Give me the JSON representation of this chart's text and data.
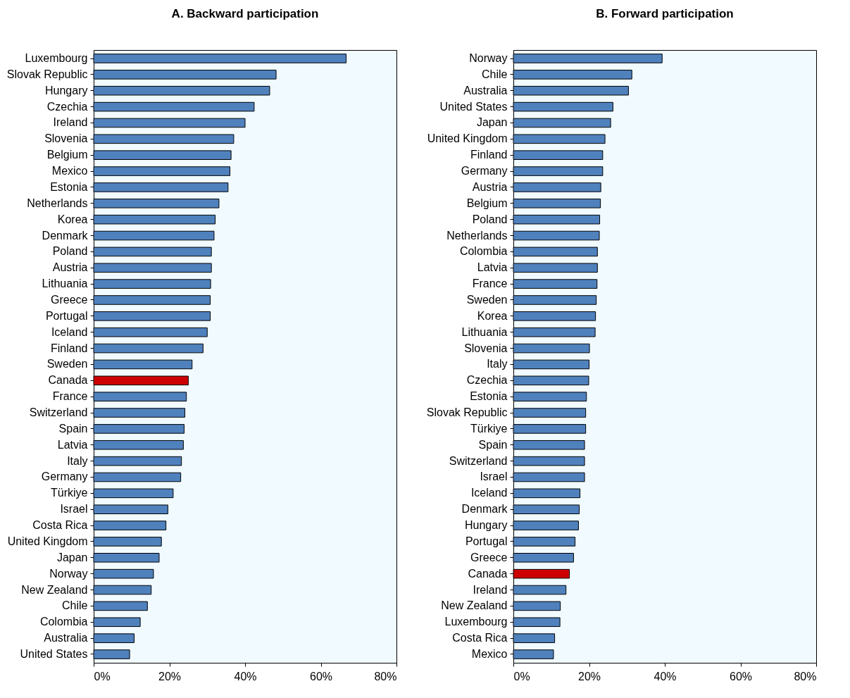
{
  "chart_data": [
    {
      "type": "bar",
      "orientation": "horizontal",
      "title": "A. Backward participation",
      "categories": [
        "Luxembourg",
        "Slovak Republic",
        "Hungary",
        "Czechia",
        "Ireland",
        "Slovenia",
        "Belgium",
        "Mexico",
        "Estonia",
        "Netherlands",
        "Korea",
        "Denmark",
        "Poland",
        "Austria",
        "Lithuania",
        "Greece",
        "Portugal",
        "Iceland",
        "Finland",
        "Sweden",
        "Canada",
        "France",
        "Switzerland",
        "Spain",
        "Latvia",
        "Italy",
        "Germany",
        "Türkiye",
        "Israel",
        "Costa Rica",
        "United Kingdom",
        "Japan",
        "Norway",
        "New Zealand",
        "Chile",
        "Colombia",
        "Australia",
        "United States"
      ],
      "values": [
        66.7,
        48.2,
        46.5,
        42.4,
        40.0,
        37.0,
        36.3,
        36.0,
        35.5,
        33.1,
        32.1,
        31.8,
        31.1,
        31.1,
        30.9,
        30.8,
        30.8,
        30.0,
        28.9,
        26.0,
        25.0,
        24.5,
        24.1,
        23.9,
        23.7,
        23.2,
        23.0,
        21.0,
        19.6,
        19.1,
        17.9,
        17.3,
        15.8,
        15.2,
        14.2,
        12.3,
        10.7,
        9.5
      ],
      "colors": [
        "#4f81bd",
        "#4f81bd",
        "#4f81bd",
        "#4f81bd",
        "#4f81bd",
        "#4f81bd",
        "#4f81bd",
        "#4f81bd",
        "#4f81bd",
        "#4f81bd",
        "#4f81bd",
        "#4f81bd",
        "#4f81bd",
        "#4f81bd",
        "#4f81bd",
        "#4f81bd",
        "#4f81bd",
        "#4f81bd",
        "#4f81bd",
        "#4f81bd",
        "#cc0000",
        "#4f81bd",
        "#4f81bd",
        "#4f81bd",
        "#4f81bd",
        "#4f81bd",
        "#4f81bd",
        "#4f81bd",
        "#4f81bd",
        "#4f81bd",
        "#4f81bd",
        "#4f81bd",
        "#4f81bd",
        "#4f81bd",
        "#4f81bd",
        "#4f81bd",
        "#4f81bd",
        "#4f81bd"
      ],
      "xlim": [
        0,
        80
      ],
      "xticks": [
        {
          "value": 0,
          "label": "0%"
        },
        {
          "value": 20,
          "label": "20%"
        },
        {
          "value": 40,
          "label": "40%"
        },
        {
          "value": 60,
          "label": "60%"
        },
        {
          "value": 80,
          "label": "80%"
        }
      ]
    },
    {
      "type": "bar",
      "orientation": "horizontal",
      "title": "B. Forward participation",
      "categories": [
        "Norway",
        "Chile",
        "Australia",
        "United States",
        "Japan",
        "United Kingdom",
        "Finland",
        "Germany",
        "Austria",
        "Belgium",
        "Poland",
        "Netherlands",
        "Colombia",
        "Latvia",
        "France",
        "Sweden",
        "Korea",
        "Lithuania",
        "Slovenia",
        "Italy",
        "Czechia",
        "Estonia",
        "Slovak Republic",
        "Türkiye",
        "Spain",
        "Switzerland",
        "Israel",
        "Iceland",
        "Denmark",
        "Hungary",
        "Portugal",
        "Greece",
        "Canada",
        "Ireland",
        "New Zealand",
        "Luxembourg",
        "Costa Rica",
        "Mexico"
      ],
      "values": [
        39.3,
        31.3,
        30.4,
        26.3,
        25.7,
        24.2,
        23.6,
        23.6,
        23.1,
        23.0,
        22.8,
        22.7,
        22.2,
        22.2,
        22.1,
        21.9,
        21.7,
        21.6,
        20.1,
        20.0,
        19.9,
        19.3,
        19.1,
        19.1,
        18.8,
        18.8,
        18.8,
        17.6,
        17.4,
        17.2,
        16.3,
        15.9,
        14.8,
        13.9,
        12.4,
        12.3,
        10.9,
        10.6
      ],
      "colors": [
        "#4f81bd",
        "#4f81bd",
        "#4f81bd",
        "#4f81bd",
        "#4f81bd",
        "#4f81bd",
        "#4f81bd",
        "#4f81bd",
        "#4f81bd",
        "#4f81bd",
        "#4f81bd",
        "#4f81bd",
        "#4f81bd",
        "#4f81bd",
        "#4f81bd",
        "#4f81bd",
        "#4f81bd",
        "#4f81bd",
        "#4f81bd",
        "#4f81bd",
        "#4f81bd",
        "#4f81bd",
        "#4f81bd",
        "#4f81bd",
        "#4f81bd",
        "#4f81bd",
        "#4f81bd",
        "#4f81bd",
        "#4f81bd",
        "#4f81bd",
        "#4f81bd",
        "#4f81bd",
        "#cc0000",
        "#4f81bd",
        "#4f81bd",
        "#4f81bd",
        "#4f81bd",
        "#4f81bd"
      ],
      "xlim": [
        0,
        80
      ],
      "xticks": [
        {
          "value": 0,
          "label": "0%"
        },
        {
          "value": 20,
          "label": "20%"
        },
        {
          "value": 40,
          "label": "40%"
        },
        {
          "value": 60,
          "label": "60%"
        },
        {
          "value": 80,
          "label": "80%"
        }
      ]
    }
  ]
}
